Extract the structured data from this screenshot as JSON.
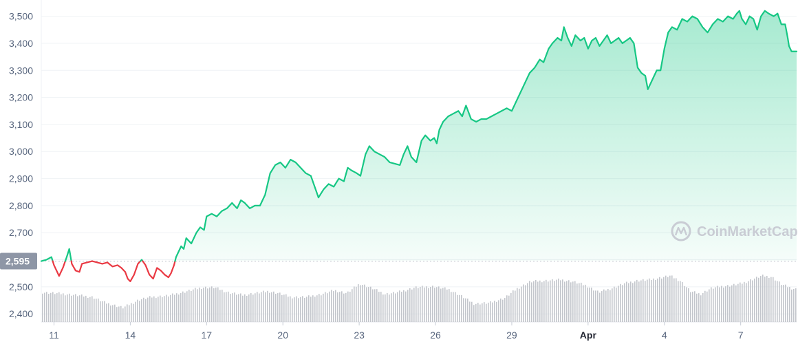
{
  "watermark": "CoinMarketCap",
  "colors": {
    "up": "#16c784",
    "down": "#ea3943",
    "grid": "#eff2f5",
    "axis_text": "#58667e",
    "volume": "#c3c6cc",
    "ref_label_bg": "#8e96a6",
    "ref_line": "#b9bec7",
    "watermark": "#c9ccd4"
  },
  "chart_data": {
    "type": "area",
    "title": "",
    "xlabel": "",
    "ylabel": "",
    "x_unit": "day",
    "xlim": [
      10.5,
      40.2
    ],
    "ylim": [
      2370,
      3560
    ],
    "y_ticks": [
      2400,
      2500,
      2600,
      2700,
      2800,
      2900,
      3000,
      3100,
      3200,
      3300,
      3400,
      3500
    ],
    "y_tick_labels": [
      "2,400",
      "2,500",
      "2,600",
      "2,700",
      "2,800",
      "2,900",
      "3,000",
      "3,100",
      "3,200",
      "3,300",
      "3,400",
      "3,500"
    ],
    "x_ticks": [
      {
        "day": 11,
        "label": "11",
        "bold": false
      },
      {
        "day": 14,
        "label": "14",
        "bold": false
      },
      {
        "day": 17,
        "label": "17",
        "bold": false
      },
      {
        "day": 20,
        "label": "20",
        "bold": false
      },
      {
        "day": 23,
        "label": "23",
        "bold": false
      },
      {
        "day": 26,
        "label": "26",
        "bold": false
      },
      {
        "day": 29,
        "label": "29",
        "bold": false
      },
      {
        "day": 32,
        "label": "Apr",
        "bold": true
      },
      {
        "day": 35,
        "label": "4",
        "bold": false
      },
      {
        "day": 38,
        "label": "7",
        "bold": false
      }
    ],
    "reference": {
      "value": 2595,
      "label": "2,595"
    },
    "grid": true,
    "legend": "none",
    "series": [
      {
        "points": [
          [
            10.5,
            2595
          ],
          [
            10.7,
            2600
          ],
          [
            10.9,
            2610
          ],
          [
            11.0,
            2580
          ],
          [
            11.2,
            2540
          ],
          [
            11.35,
            2570
          ],
          [
            11.5,
            2610
          ],
          [
            11.6,
            2640
          ],
          [
            11.7,
            2585
          ],
          [
            11.85,
            2560
          ],
          [
            12.0,
            2555
          ],
          [
            12.1,
            2585
          ],
          [
            12.3,
            2590
          ],
          [
            12.5,
            2595
          ],
          [
            12.7,
            2590
          ],
          [
            12.9,
            2585
          ],
          [
            13.1,
            2590
          ],
          [
            13.3,
            2575
          ],
          [
            13.5,
            2580
          ],
          [
            13.65,
            2570
          ],
          [
            13.8,
            2555
          ],
          [
            13.9,
            2530
          ],
          [
            14.0,
            2520
          ],
          [
            14.15,
            2545
          ],
          [
            14.3,
            2585
          ],
          [
            14.45,
            2600
          ],
          [
            14.6,
            2580
          ],
          [
            14.75,
            2545
          ],
          [
            14.9,
            2530
          ],
          [
            15.05,
            2570
          ],
          [
            15.2,
            2560
          ],
          [
            15.35,
            2545
          ],
          [
            15.5,
            2535
          ],
          [
            15.6,
            2550
          ],
          [
            15.72,
            2580
          ],
          [
            15.8,
            2610
          ],
          [
            15.9,
            2630
          ],
          [
            16.0,
            2650
          ],
          [
            16.1,
            2640
          ],
          [
            16.2,
            2680
          ],
          [
            16.4,
            2660
          ],
          [
            16.6,
            2700
          ],
          [
            16.75,
            2720
          ],
          [
            16.9,
            2710
          ],
          [
            17.0,
            2760
          ],
          [
            17.2,
            2770
          ],
          [
            17.4,
            2760
          ],
          [
            17.6,
            2780
          ],
          [
            17.8,
            2790
          ],
          [
            18.0,
            2810
          ],
          [
            18.2,
            2790
          ],
          [
            18.35,
            2820
          ],
          [
            18.5,
            2810
          ],
          [
            18.7,
            2790
          ],
          [
            18.9,
            2800
          ],
          [
            19.1,
            2800
          ],
          [
            19.3,
            2840
          ],
          [
            19.5,
            2920
          ],
          [
            19.7,
            2950
          ],
          [
            19.9,
            2960
          ],
          [
            20.1,
            2940
          ],
          [
            20.3,
            2970
          ],
          [
            20.5,
            2960
          ],
          [
            20.7,
            2940
          ],
          [
            20.9,
            2920
          ],
          [
            21.1,
            2910
          ],
          [
            21.25,
            2870
          ],
          [
            21.4,
            2830
          ],
          [
            21.6,
            2860
          ],
          [
            21.8,
            2880
          ],
          [
            22.0,
            2870
          ],
          [
            22.2,
            2900
          ],
          [
            22.4,
            2890
          ],
          [
            22.55,
            2940
          ],
          [
            22.7,
            2930
          ],
          [
            22.9,
            2920
          ],
          [
            23.05,
            2910
          ],
          [
            23.25,
            2990
          ],
          [
            23.4,
            3020
          ],
          [
            23.6,
            3000
          ],
          [
            23.8,
            2990
          ],
          [
            24.0,
            2980
          ],
          [
            24.2,
            2960
          ],
          [
            24.4,
            2955
          ],
          [
            24.6,
            2950
          ],
          [
            24.75,
            2990
          ],
          [
            24.9,
            3020
          ],
          [
            25.05,
            2980
          ],
          [
            25.25,
            2960
          ],
          [
            25.45,
            3040
          ],
          [
            25.6,
            3060
          ],
          [
            25.8,
            3040
          ],
          [
            25.95,
            3050
          ],
          [
            26.05,
            3030
          ],
          [
            26.15,
            3080
          ],
          [
            26.3,
            3110
          ],
          [
            26.5,
            3130
          ],
          [
            26.7,
            3140
          ],
          [
            26.9,
            3150
          ],
          [
            27.05,
            3130
          ],
          [
            27.2,
            3170
          ],
          [
            27.4,
            3120
          ],
          [
            27.6,
            3110
          ],
          [
            27.8,
            3120
          ],
          [
            28.0,
            3120
          ],
          [
            28.2,
            3130
          ],
          [
            28.4,
            3140
          ],
          [
            28.6,
            3150
          ],
          [
            28.8,
            3160
          ],
          [
            29.0,
            3150
          ],
          [
            29.15,
            3180
          ],
          [
            29.3,
            3210
          ],
          [
            29.5,
            3250
          ],
          [
            29.7,
            3290
          ],
          [
            29.9,
            3310
          ],
          [
            30.1,
            3340
          ],
          [
            30.25,
            3330
          ],
          [
            30.45,
            3380
          ],
          [
            30.6,
            3400
          ],
          [
            30.8,
            3420
          ],
          [
            30.95,
            3410
          ],
          [
            31.05,
            3460
          ],
          [
            31.2,
            3420
          ],
          [
            31.35,
            3390
          ],
          [
            31.5,
            3430
          ],
          [
            31.7,
            3410
          ],
          [
            31.85,
            3420
          ],
          [
            32.0,
            3380
          ],
          [
            32.15,
            3410
          ],
          [
            32.3,
            3420
          ],
          [
            32.45,
            3390
          ],
          [
            32.6,
            3410
          ],
          [
            32.75,
            3430
          ],
          [
            32.9,
            3400
          ],
          [
            33.05,
            3410
          ],
          [
            33.2,
            3420
          ],
          [
            33.35,
            3400
          ],
          [
            33.5,
            3410
          ],
          [
            33.65,
            3420
          ],
          [
            33.8,
            3400
          ],
          [
            33.95,
            3310
          ],
          [
            34.1,
            3290
          ],
          [
            34.25,
            3280
          ],
          [
            34.35,
            3230
          ],
          [
            34.5,
            3260
          ],
          [
            34.7,
            3300
          ],
          [
            34.85,
            3300
          ],
          [
            35.0,
            3380
          ],
          [
            35.15,
            3440
          ],
          [
            35.3,
            3460
          ],
          [
            35.5,
            3450
          ],
          [
            35.7,
            3490
          ],
          [
            35.9,
            3480
          ],
          [
            36.1,
            3500
          ],
          [
            36.3,
            3490
          ],
          [
            36.5,
            3460
          ],
          [
            36.7,
            3440
          ],
          [
            36.9,
            3470
          ],
          [
            37.1,
            3490
          ],
          [
            37.3,
            3480
          ],
          [
            37.5,
            3500
          ],
          [
            37.7,
            3490
          ],
          [
            37.85,
            3510
          ],
          [
            37.95,
            3520
          ],
          [
            38.05,
            3490
          ],
          [
            38.2,
            3470
          ],
          [
            38.35,
            3500
          ],
          [
            38.5,
            3490
          ],
          [
            38.65,
            3450
          ],
          [
            38.8,
            3500
          ],
          [
            38.95,
            3520
          ],
          [
            39.1,
            3510
          ],
          [
            39.3,
            3500
          ],
          [
            39.45,
            3510
          ],
          [
            39.6,
            3470
          ],
          [
            39.75,
            3470
          ],
          [
            39.85,
            3420
          ],
          [
            39.9,
            3390
          ],
          [
            40.0,
            3370
          ],
          [
            40.2,
            3370
          ]
        ]
      }
    ],
    "volume": {
      "note": "volume bars (relative height 0-1)",
      "points": [
        [
          10.5,
          0.62
        ],
        [
          11.5,
          0.58
        ],
        [
          12.5,
          0.52
        ],
        [
          13.0,
          0.4
        ],
        [
          13.7,
          0.3
        ],
        [
          14.3,
          0.46
        ],
        [
          14.8,
          0.52
        ],
        [
          15.5,
          0.55
        ],
        [
          16.2,
          0.64
        ],
        [
          16.8,
          0.72
        ],
        [
          17.3,
          0.72
        ],
        [
          17.8,
          0.62
        ],
        [
          18.4,
          0.56
        ],
        [
          18.9,
          0.6
        ],
        [
          19.4,
          0.64
        ],
        [
          19.8,
          0.6
        ],
        [
          20.3,
          0.52
        ],
        [
          20.9,
          0.52
        ],
        [
          21.5,
          0.58
        ],
        [
          22.0,
          0.66
        ],
        [
          22.5,
          0.6
        ],
        [
          23.0,
          0.8
        ],
        [
          23.5,
          0.7
        ],
        [
          24.0,
          0.58
        ],
        [
          24.5,
          0.62
        ],
        [
          25.2,
          0.72
        ],
        [
          25.9,
          0.74
        ],
        [
          26.5,
          0.68
        ],
        [
          27.0,
          0.54
        ],
        [
          27.5,
          0.38
        ],
        [
          28.1,
          0.4
        ],
        [
          28.7,
          0.5
        ],
        [
          29.2,
          0.7
        ],
        [
          29.7,
          0.84
        ],
        [
          30.3,
          0.86
        ],
        [
          30.9,
          0.88
        ],
        [
          31.4,
          0.84
        ],
        [
          31.9,
          0.76
        ],
        [
          32.4,
          0.62
        ],
        [
          32.9,
          0.7
        ],
        [
          33.4,
          0.8
        ],
        [
          33.9,
          0.86
        ],
        [
          34.4,
          0.88
        ],
        [
          34.8,
          0.92
        ],
        [
          35.2,
          0.96
        ],
        [
          35.6,
          0.86
        ],
        [
          36.0,
          0.64
        ],
        [
          36.4,
          0.58
        ],
        [
          36.8,
          0.7
        ],
        [
          37.2,
          0.74
        ],
        [
          37.6,
          0.76
        ],
        [
          38.0,
          0.8
        ],
        [
          38.4,
          0.88
        ],
        [
          38.8,
          0.96
        ],
        [
          39.2,
          0.94
        ],
        [
          39.6,
          0.78
        ],
        [
          40.0,
          0.7
        ],
        [
          40.2,
          0.68
        ]
      ]
    }
  }
}
